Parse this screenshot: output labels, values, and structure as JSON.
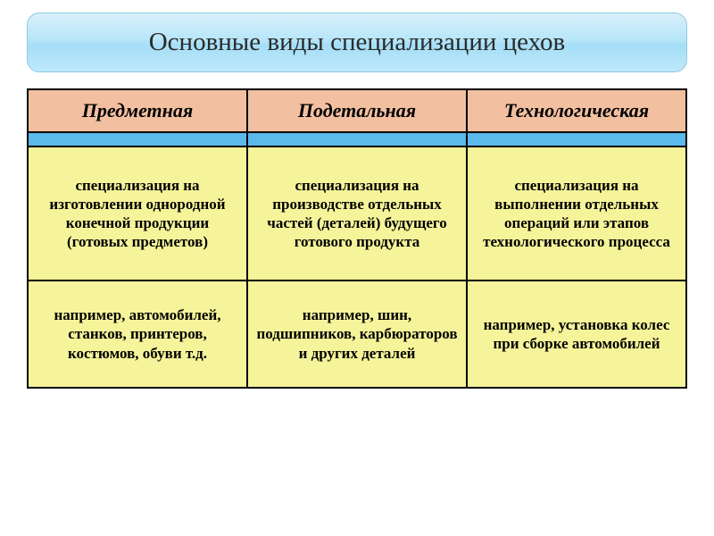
{
  "title": "Основные виды специализации цехов",
  "colors": {
    "header_bg": "#f2c0a0",
    "stripe_bg": "#5bb9ec",
    "body_bg": "#f6f49a",
    "title_gradient_top": "#d9f0fb",
    "title_gradient_bottom": "#bfe9fb",
    "border": "#000000"
  },
  "table": {
    "columns": [
      {
        "header": "Предметная"
      },
      {
        "header": "Подетальная"
      },
      {
        "header": "Технологическая"
      }
    ],
    "descriptions": [
      "специализация на изготовлении однородной конечной продукции (готовых предметов)",
      "специализация на производстве отдельных частей (деталей) будущего готового продукта",
      "специализация на выполнении отдельных операций или этапов технологического процесса"
    ],
    "examples": [
      "например, автомобилей, станков, принтеров, костюмов, обуви т.д.",
      "например, шин, подшипников, карбюраторов и других деталей",
      "например, установка колес при сборке автомобилей"
    ]
  }
}
